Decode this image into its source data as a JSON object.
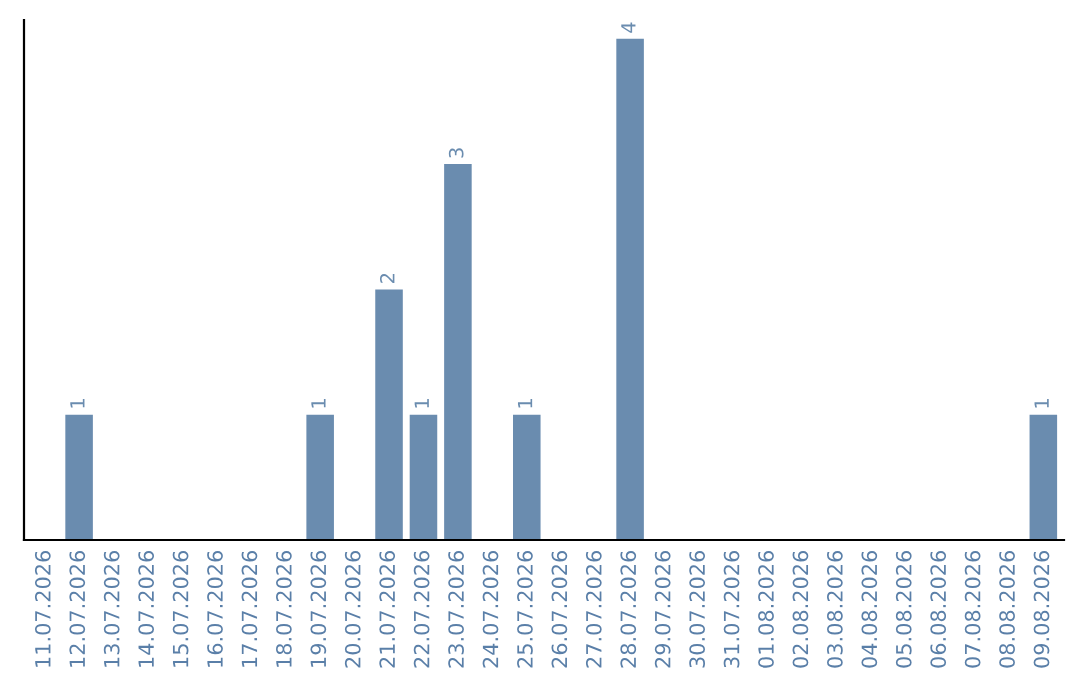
{
  "chart_data": {
    "type": "bar",
    "categories": [
      "11.07.2026",
      "12.07.2026",
      "13.07.2026",
      "14.07.2026",
      "15.07.2026",
      "16.07.2026",
      "17.07.2026",
      "18.07.2026",
      "19.07.2026",
      "20.07.2026",
      "21.07.2026",
      "22.07.2026",
      "23.07.2026",
      "24.07.2026",
      "25.07.2026",
      "26.07.2026",
      "27.07.2026",
      "28.07.2026",
      "29.07.2026",
      "30.07.2026",
      "31.07.2026",
      "01.08.2026",
      "02.08.2026",
      "03.08.2026",
      "04.08.2026",
      "05.08.2026",
      "06.08.2026",
      "07.08.2026",
      "08.08.2026",
      "09.08.2026"
    ],
    "values": [
      0,
      1,
      0,
      0,
      0,
      0,
      0,
      0,
      1,
      0,
      2,
      1,
      3,
      0,
      1,
      0,
      0,
      4,
      0,
      0,
      0,
      0,
      0,
      0,
      0,
      0,
      0,
      0,
      0,
      1
    ],
    "value_labels": [
      null,
      "1",
      null,
      null,
      null,
      null,
      null,
      null,
      "1",
      null,
      "2",
      "1",
      "3",
      null,
      "1",
      null,
      null,
      "4",
      null,
      null,
      null,
      null,
      null,
      null,
      null,
      null,
      null,
      null,
      null,
      "1"
    ],
    "color": "#6a8caf",
    "ylim": [
      0,
      4.15
    ],
    "tick_labels": "x",
    "grid": false,
    "legend": false
  }
}
